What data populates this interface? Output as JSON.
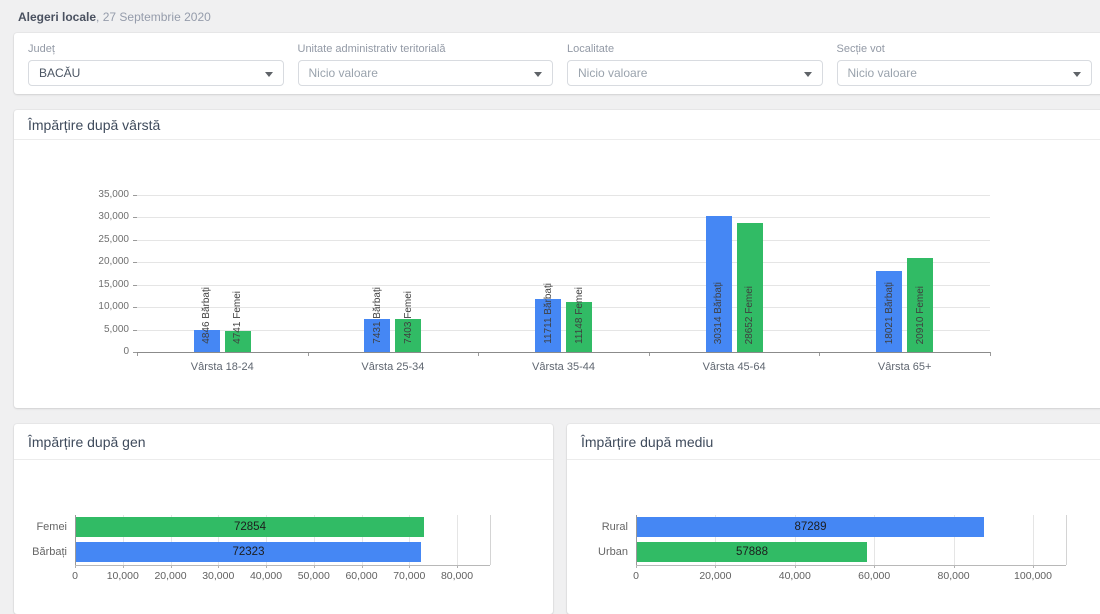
{
  "page": {
    "title_bold": "Alegeri locale",
    "title_date": ", 27 Septembrie 2020"
  },
  "filters": [
    {
      "label": "Județ",
      "value": "BACĂU",
      "is_placeholder": false
    },
    {
      "label": "Unitate administrativ teritorială",
      "value": "Nicio valoare",
      "is_placeholder": true
    },
    {
      "label": "Localitate",
      "value": "Nicio valoare",
      "is_placeholder": true
    },
    {
      "label": "Secție vot",
      "value": "Nicio valoare",
      "is_placeholder": true
    }
  ],
  "colors": {
    "barbati_blue": "#4587F4",
    "femei_green": "#31BB65",
    "axis_line": "#8b8b8b",
    "grid_line": "#e5e5e5",
    "tick_text": "#6f6f6f"
  },
  "chart_data": [
    {
      "id": "varsta",
      "type": "bar",
      "title": "Împărțire după vârstă",
      "categories": [
        "Vârsta 18-24",
        "Vârsta 25-34",
        "Vârsta 35-44",
        "Vârsta 45-64",
        "Vârsta 65+"
      ],
      "series": [
        {
          "name": "Bărbați",
          "color": "#4587F4",
          "values": [
            4846,
            7431,
            11711,
            30314,
            18021
          ]
        },
        {
          "name": "Femei",
          "color": "#31BB65",
          "values": [
            4741,
            7403,
            11148,
            28652,
            20910
          ]
        }
      ],
      "ylim": [
        0,
        35000
      ],
      "ytick_step": 5000,
      "grid": true,
      "legend": "none",
      "bar_label_format": "{value} {series}"
    },
    {
      "id": "gen",
      "type": "bar",
      "orientation": "horizontal",
      "title": "Împărțire după gen",
      "categories": [
        "Femei",
        "Bărbați"
      ],
      "values": [
        72854,
        72323
      ],
      "bar_colors": [
        "#31BB65",
        "#4587F4"
      ],
      "xlim": [
        0,
        80000
      ],
      "xtick_step": 10000,
      "grid": true,
      "legend": "none"
    },
    {
      "id": "mediu",
      "type": "bar",
      "orientation": "horizontal",
      "title": "Împărțire după mediu",
      "categories": [
        "Rural",
        "Urban"
      ],
      "values": [
        87289,
        57888
      ],
      "bar_colors": [
        "#4587F4",
        "#31BB65"
      ],
      "xlim": [
        0,
        100000
      ],
      "xtick_step": 20000,
      "grid": true,
      "legend": "none"
    }
  ]
}
